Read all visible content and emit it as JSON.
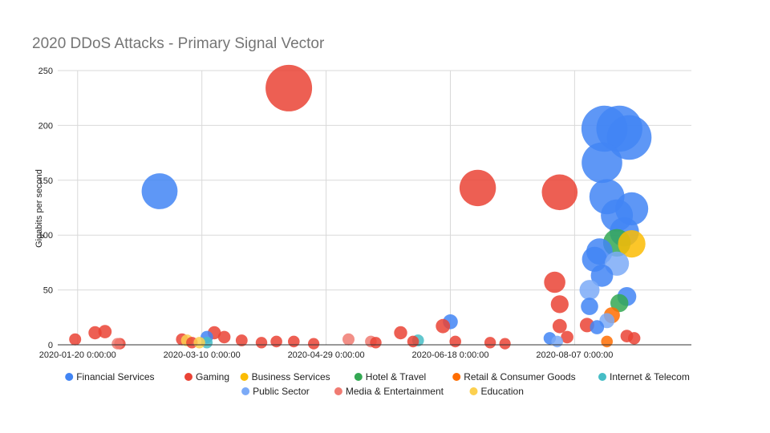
{
  "chart_data": {
    "type": "scatter",
    "title": "2020 DDoS Attacks - Primary Signal Vector",
    "xlabel": "",
    "ylabel": "Gigabits per second",
    "ylim": [
      0,
      250
    ],
    "xlim": [
      "2020-01-12",
      "2020-09-23"
    ],
    "y_ticks": [
      0,
      50,
      100,
      150,
      200,
      250
    ],
    "x_ticks": [
      {
        "date": "2020-01-20",
        "label": "2020-01-20 0:00:00"
      },
      {
        "date": "2020-03-10",
        "label": "2020-03-10 0:00:00"
      },
      {
        "date": "2020-04-29",
        "label": "2020-04-29 0:00:00"
      },
      {
        "date": "2020-06-18",
        "label": "2020-06-18 0:00:00"
      },
      {
        "date": "2020-08-07",
        "label": "2020-08-07 0:00:00"
      }
    ],
    "grid": true,
    "legend_position": "bottom",
    "series": [
      {
        "name": "Financial Services",
        "color": "#4285f4",
        "points": [
          {
            "x": "2020-02-22",
            "y": 140
          },
          {
            "x": "2020-03-12",
            "y": 7
          },
          {
            "x": "2020-06-18",
            "y": 21
          },
          {
            "x": "2020-07-28",
            "y": 6
          },
          {
            "x": "2020-08-19",
            "y": 197
          },
          {
            "x": "2020-08-25",
            "y": 197
          },
          {
            "x": "2020-08-29",
            "y": 189
          },
          {
            "x": "2020-08-18",
            "y": 166
          },
          {
            "x": "2020-08-20",
            "y": 135
          },
          {
            "x": "2020-08-30",
            "y": 124
          },
          {
            "x": "2020-08-24",
            "y": 118
          },
          {
            "x": "2020-08-27",
            "y": 103
          },
          {
            "x": "2020-08-17",
            "y": 85
          },
          {
            "x": "2020-08-15",
            "y": 78
          },
          {
            "x": "2020-08-18",
            "y": 63
          },
          {
            "x": "2020-08-28",
            "y": 44
          },
          {
            "x": "2020-08-13",
            "y": 35
          },
          {
            "x": "2020-08-16",
            "y": 16
          }
        ]
      },
      {
        "name": "Gaming",
        "color": "#ea4335",
        "points": [
          {
            "x": "2020-01-19",
            "y": 5
          },
          {
            "x": "2020-01-27",
            "y": 11
          },
          {
            "x": "2020-01-31",
            "y": 12
          },
          {
            "x": "2020-02-06",
            "y": 1
          },
          {
            "x": "2020-03-02",
            "y": 5
          },
          {
            "x": "2020-03-06",
            "y": 2
          },
          {
            "x": "2020-03-15",
            "y": 11
          },
          {
            "x": "2020-03-19",
            "y": 7
          },
          {
            "x": "2020-03-26",
            "y": 4
          },
          {
            "x": "2020-04-03",
            "y": 2
          },
          {
            "x": "2020-04-09",
            "y": 3
          },
          {
            "x": "2020-04-14",
            "y": 234
          },
          {
            "x": "2020-04-16",
            "y": 3
          },
          {
            "x": "2020-04-24",
            "y": 1
          },
          {
            "x": "2020-05-19",
            "y": 2
          },
          {
            "x": "2020-05-29",
            "y": 11
          },
          {
            "x": "2020-06-03",
            "y": 3
          },
          {
            "x": "2020-06-15",
            "y": 17
          },
          {
            "x": "2020-06-20",
            "y": 3
          },
          {
            "x": "2020-06-29",
            "y": 143
          },
          {
            "x": "2020-07-04",
            "y": 2
          },
          {
            "x": "2020-07-10",
            "y": 1
          },
          {
            "x": "2020-08-01",
            "y": 139
          },
          {
            "x": "2020-07-30",
            "y": 57
          },
          {
            "x": "2020-08-01",
            "y": 37
          },
          {
            "x": "2020-08-01",
            "y": 17
          },
          {
            "x": "2020-08-04",
            "y": 7
          },
          {
            "x": "2020-08-12",
            "y": 18
          },
          {
            "x": "2020-08-28",
            "y": 8
          },
          {
            "x": "2020-08-31",
            "y": 6
          }
        ]
      },
      {
        "name": "Business Services",
        "color": "#fbbc04",
        "points": [
          {
            "x": "2020-08-30",
            "y": 92
          }
        ]
      },
      {
        "name": "Hotel & Travel",
        "color": "#34a853",
        "points": [
          {
            "x": "2020-08-24",
            "y": 93
          },
          {
            "x": "2020-08-25",
            "y": 38
          }
        ]
      },
      {
        "name": "Retail & Consumer Goods",
        "color": "#ff6d01",
        "points": [
          {
            "x": "2020-08-22",
            "y": 27
          },
          {
            "x": "2020-08-20",
            "y": 3
          }
        ]
      },
      {
        "name": "Internet & Telecom",
        "color": "#46bdc6",
        "points": [
          {
            "x": "2020-06-05",
            "y": 4
          },
          {
            "x": "2020-03-12",
            "y": 2
          }
        ]
      },
      {
        "name": "Public Sector",
        "color": "#7baaf7",
        "points": [
          {
            "x": "2020-08-24",
            "y": 74
          },
          {
            "x": "2020-08-13",
            "y": 50
          },
          {
            "x": "2020-08-20",
            "y": 22
          },
          {
            "x": "2020-07-31",
            "y": 3
          }
        ]
      },
      {
        "name": "Media & Entertainment",
        "color": "#f07b72",
        "points": [
          {
            "x": "2020-05-08",
            "y": 5
          },
          {
            "x": "2020-05-17",
            "y": 3
          },
          {
            "x": "2020-02-05",
            "y": 1
          }
        ]
      },
      {
        "name": "Education",
        "color": "#fcd04f",
        "points": [
          {
            "x": "2020-03-04",
            "y": 4
          },
          {
            "x": "2020-03-09",
            "y": 2
          }
        ]
      }
    ]
  }
}
